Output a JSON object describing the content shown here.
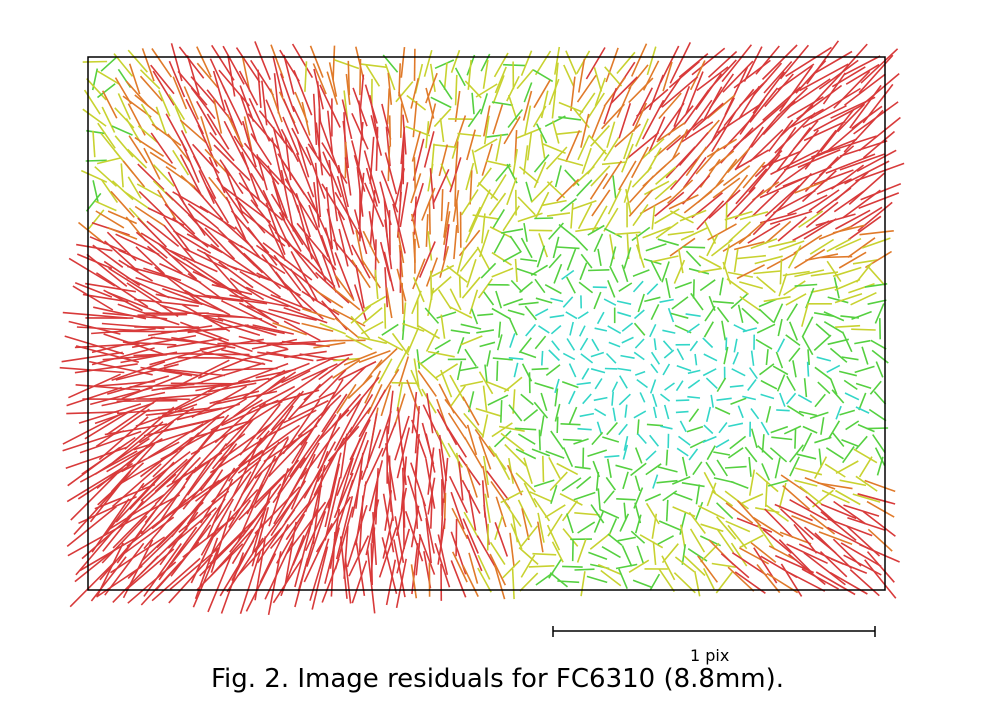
{
  "figure": {
    "caption": "Fig. 2. Image residuals for FC6310 (8.8mm).",
    "scale_bar_label": "1 pix"
  },
  "vector_colors": {
    "small": "#3a6fd8",
    "low": "#33d6c8",
    "mid": "#55d040",
    "mid_high": "#c8d230",
    "high": "#e07a2a",
    "max": "#d83a3a"
  },
  "chart_data": {
    "type": "vector-field",
    "title": "Image residuals for FC6310 (8.8mm)",
    "scale_reference": "1 pix",
    "grid": false,
    "legend": "none"
  }
}
